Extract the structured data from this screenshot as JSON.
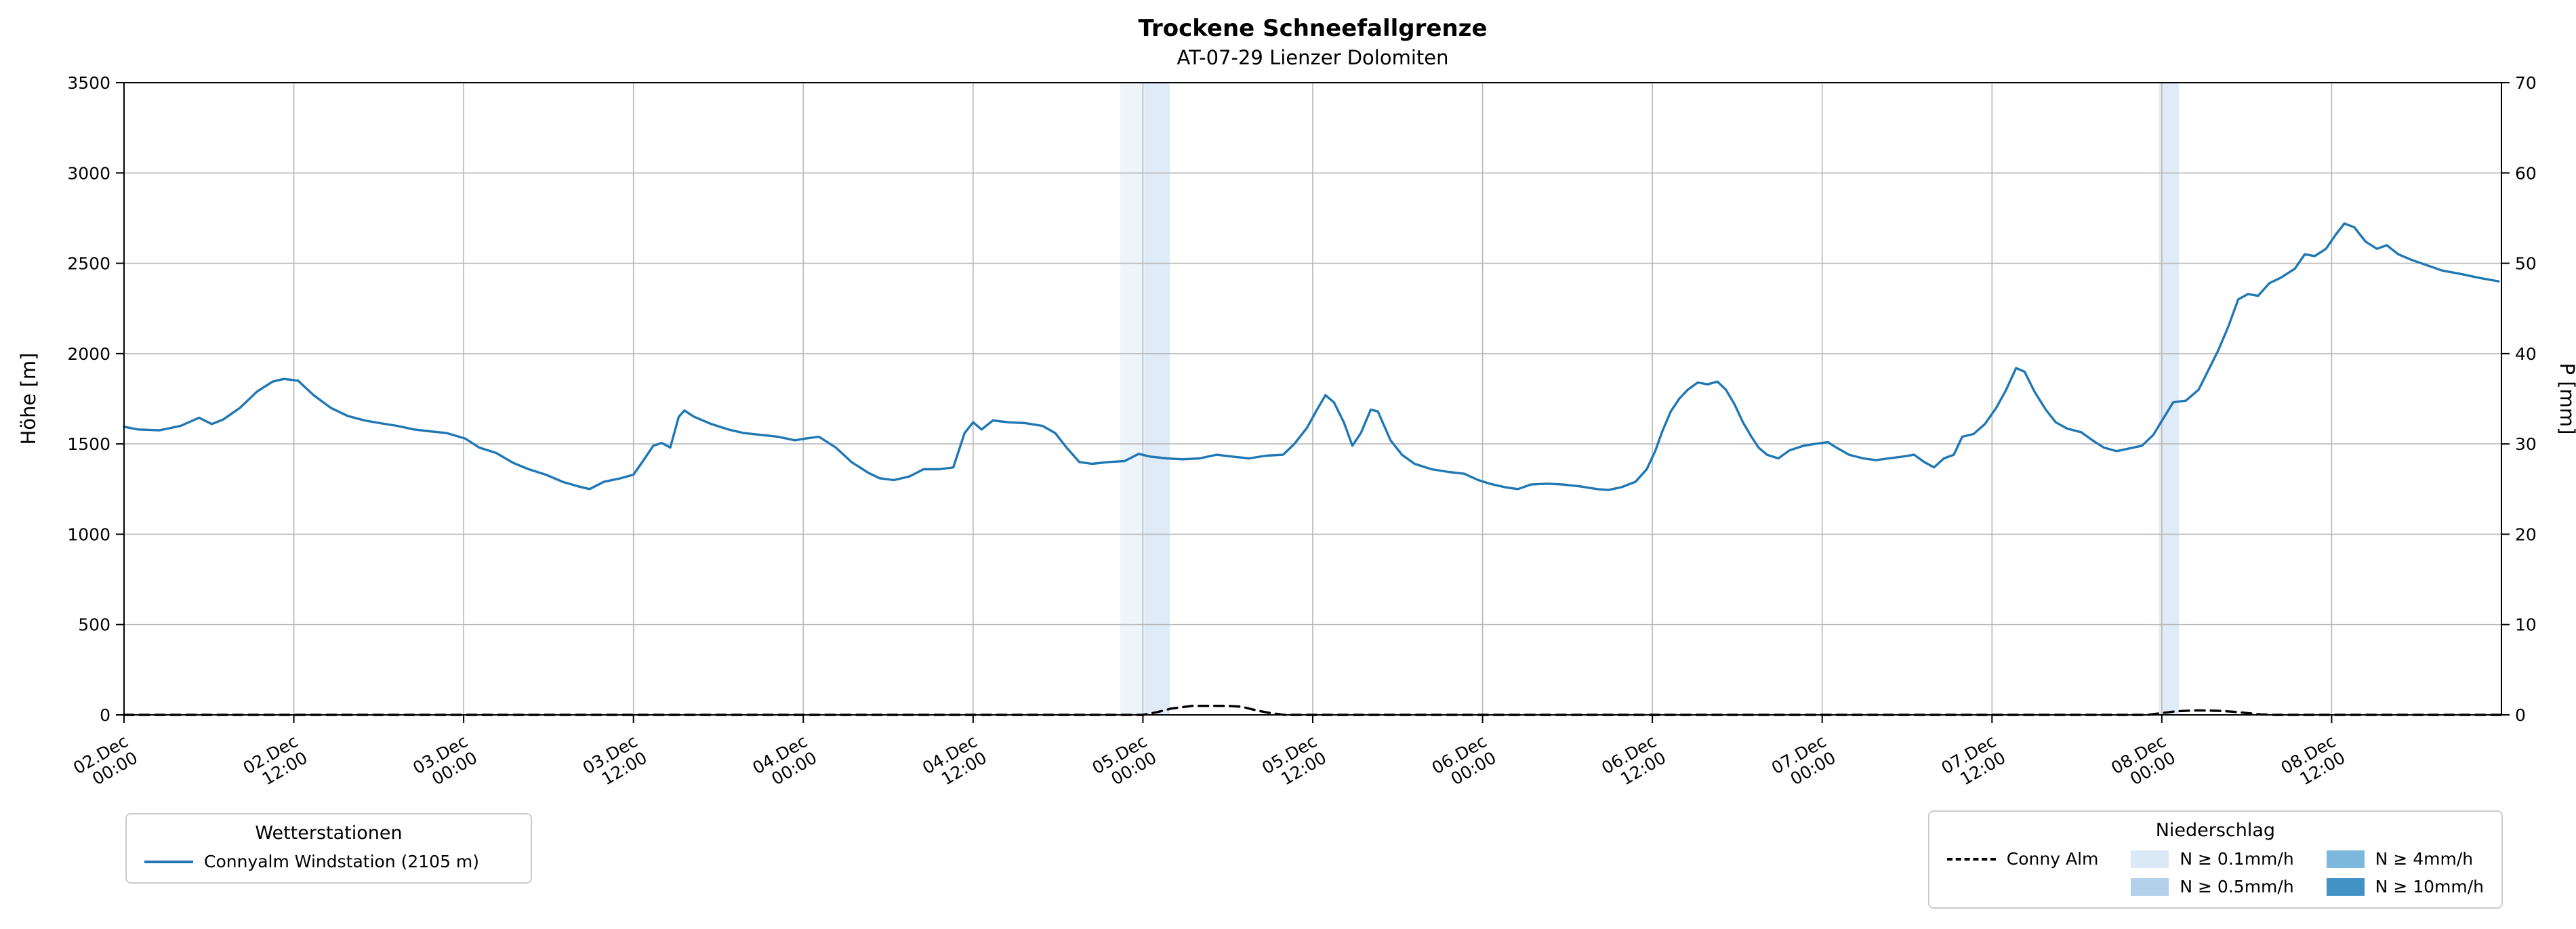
{
  "header": {
    "title": "Trockene Schneefallgrenze",
    "subtitle": "AT-07-29 Lienzer Dolomiten"
  },
  "legend_stations": {
    "title": "Wetterstationen",
    "items": [
      {
        "label": "Connyalm Windstation (2105 m)",
        "color": "#1f77b4",
        "style": "solid"
      }
    ]
  },
  "legend_precip": {
    "title": "Niederschlag",
    "line_item": {
      "label": "Conny Alm",
      "color": "#000000",
      "style": "dashed"
    },
    "levels": [
      {
        "label": "N ≥ 0.1mm/h",
        "color": "#dbe9f6"
      },
      {
        "label": "N ≥ 0.5mm/h",
        "color": "#b3d1ea"
      },
      {
        "label": "N ≥ 4mm/h",
        "color": "#7db8dd"
      },
      {
        "label": "N ≥ 10mm/h",
        "color": "#4292c6"
      }
    ]
  },
  "chart_data": {
    "type": "line",
    "title": "Trockene Schneefallgrenze",
    "subtitle": "AT-07-29 Lienzer Dolomiten",
    "ylabel_left": "Höhe [m]",
    "ylabel_right": "P [mm]",
    "x_unit": "hours since 02.Dec 00:00",
    "xlim": [
      0,
      168
    ],
    "ylim_left": [
      0,
      3500
    ],
    "ylim_right": [
      0,
      70
    ],
    "grid": true,
    "y_ticks_left": [
      0,
      500,
      1000,
      1500,
      2000,
      2500,
      3000,
      3500
    ],
    "y_ticks_right": [
      0,
      10,
      20,
      30,
      40,
      50,
      60,
      70
    ],
    "x_ticks": [
      {
        "t": 0,
        "line1": "02.Dec",
        "line2": "00:00"
      },
      {
        "t": 12,
        "line1": "02.Dec",
        "line2": "12:00"
      },
      {
        "t": 24,
        "line1": "03.Dec",
        "line2": "00:00"
      },
      {
        "t": 36,
        "line1": "03.Dec",
        "line2": "12:00"
      },
      {
        "t": 48,
        "line1": "04.Dec",
        "line2": "00:00"
      },
      {
        "t": 60,
        "line1": "04.Dec",
        "line2": "12:00"
      },
      {
        "t": 72,
        "line1": "05.Dec",
        "line2": "00:00"
      },
      {
        "t": 84,
        "line1": "05.Dec",
        "line2": "12:00"
      },
      {
        "t": 96,
        "line1": "06.Dec",
        "line2": "00:00"
      },
      {
        "t": 108,
        "line1": "06.Dec",
        "line2": "12:00"
      },
      {
        "t": 120,
        "line1": "07.Dec",
        "line2": "00:00"
      },
      {
        "t": 132,
        "line1": "07.Dec",
        "line2": "12:00"
      },
      {
        "t": 144,
        "line1": "08.Dec",
        "line2": "00:00"
      },
      {
        "t": 156,
        "line1": "08.Dec",
        "line2": "12:00"
      }
    ],
    "precip_bands": [
      {
        "t0": 70.4,
        "t1": 72.1,
        "level": "N ≥ 0.1mm/h",
        "color": "#dbe9f6",
        "opacity": 0.5
      },
      {
        "t0": 72.1,
        "t1": 73.9,
        "level": "N ≥ 0.1mm/h",
        "color": "#dbe9f6",
        "opacity": 0.9
      },
      {
        "t0": 143.8,
        "t1": 145.2,
        "level": "N ≥ 0.1mm/h",
        "color": "#dbe9f6",
        "opacity": 0.9
      }
    ],
    "series": [
      {
        "name": "Connyalm Windstation (2105 m)",
        "axis": "left",
        "color": "#1f77b4",
        "style": "solid",
        "points": [
          [
            0,
            1595
          ],
          [
            1,
            1580
          ],
          [
            2.5,
            1575
          ],
          [
            4,
            1600
          ],
          [
            5.3,
            1645
          ],
          [
            6.2,
            1610
          ],
          [
            7,
            1635
          ],
          [
            8.2,
            1700
          ],
          [
            9.4,
            1790
          ],
          [
            10.5,
            1845
          ],
          [
            11.3,
            1860
          ],
          [
            12.3,
            1850
          ],
          [
            13.4,
            1770
          ],
          [
            14.6,
            1700
          ],
          [
            15.8,
            1655
          ],
          [
            17,
            1630
          ],
          [
            18.1,
            1615
          ],
          [
            19.3,
            1600
          ],
          [
            20.5,
            1580
          ],
          [
            21.6,
            1570
          ],
          [
            22.8,
            1560
          ],
          [
            24.1,
            1530
          ],
          [
            25.1,
            1480
          ],
          [
            26.3,
            1450
          ],
          [
            27.5,
            1395
          ],
          [
            28.6,
            1360
          ],
          [
            29.8,
            1330
          ],
          [
            31,
            1290
          ],
          [
            32.1,
            1265
          ],
          [
            32.9,
            1250
          ],
          [
            33.9,
            1290
          ],
          [
            35.1,
            1310
          ],
          [
            36,
            1330
          ],
          [
            36.8,
            1420
          ],
          [
            37.4,
            1490
          ],
          [
            38,
            1505
          ],
          [
            38.6,
            1480
          ],
          [
            39.2,
            1650
          ],
          [
            39.6,
            1685
          ],
          [
            40.3,
            1650
          ],
          [
            41.5,
            1610
          ],
          [
            42.7,
            1580
          ],
          [
            43.8,
            1560
          ],
          [
            45,
            1550
          ],
          [
            46.2,
            1540
          ],
          [
            47.4,
            1520
          ],
          [
            48.2,
            1530
          ],
          [
            49.1,
            1540
          ],
          [
            50.3,
            1480
          ],
          [
            51.4,
            1400
          ],
          [
            52.6,
            1340
          ],
          [
            53.4,
            1310
          ],
          [
            54.4,
            1300
          ],
          [
            55.5,
            1320
          ],
          [
            56.5,
            1360
          ],
          [
            57.6,
            1360
          ],
          [
            58.6,
            1370
          ],
          [
            59.4,
            1560
          ],
          [
            60,
            1620
          ],
          [
            60.6,
            1580
          ],
          [
            61.4,
            1630
          ],
          [
            62.5,
            1620
          ],
          [
            63.7,
            1615
          ],
          [
            64.9,
            1600
          ],
          [
            65.8,
            1560
          ],
          [
            66.6,
            1480
          ],
          [
            67.5,
            1400
          ],
          [
            68.4,
            1390
          ],
          [
            69.6,
            1400
          ],
          [
            70.7,
            1405
          ],
          [
            71.7,
            1445
          ],
          [
            72.5,
            1430
          ],
          [
            73.7,
            1420
          ],
          [
            74.8,
            1415
          ],
          [
            76,
            1420
          ],
          [
            77.2,
            1440
          ],
          [
            78.3,
            1430
          ],
          [
            79.5,
            1420
          ],
          [
            80.7,
            1435
          ],
          [
            81.9,
            1440
          ],
          [
            82.7,
            1500
          ],
          [
            83.6,
            1590
          ],
          [
            84.3,
            1690
          ],
          [
            84.9,
            1770
          ],
          [
            85.5,
            1730
          ],
          [
            86.2,
            1620
          ],
          [
            86.8,
            1490
          ],
          [
            87.4,
            1560
          ],
          [
            88.1,
            1690
          ],
          [
            88.6,
            1680
          ],
          [
            89.5,
            1520
          ],
          [
            90.3,
            1440
          ],
          [
            91.2,
            1390
          ],
          [
            92.4,
            1360
          ],
          [
            93.6,
            1345
          ],
          [
            94.7,
            1335
          ],
          [
            95.7,
            1300
          ],
          [
            96.5,
            1280
          ],
          [
            97.6,
            1260
          ],
          [
            98.5,
            1250
          ],
          [
            99.4,
            1275
          ],
          [
            100.6,
            1280
          ],
          [
            101.7,
            1275
          ],
          [
            102.9,
            1265
          ],
          [
            104.1,
            1250
          ],
          [
            104.9,
            1245
          ],
          [
            105.8,
            1260
          ],
          [
            106.8,
            1290
          ],
          [
            107.6,
            1360
          ],
          [
            108.2,
            1460
          ],
          [
            108.7,
            1570
          ],
          [
            109.3,
            1680
          ],
          [
            109.9,
            1750
          ],
          [
            110.5,
            1800
          ],
          [
            111.2,
            1840
          ],
          [
            111.9,
            1830
          ],
          [
            112.6,
            1845
          ],
          [
            113.2,
            1800
          ],
          [
            113.8,
            1720
          ],
          [
            114.4,
            1620
          ],
          [
            115,
            1540
          ],
          [
            115.5,
            1480
          ],
          [
            116.1,
            1440
          ],
          [
            116.9,
            1420
          ],
          [
            117.7,
            1465
          ],
          [
            118.7,
            1490
          ],
          [
            119.5,
            1500
          ],
          [
            120.4,
            1510
          ],
          [
            121,
            1480
          ],
          [
            121.9,
            1440
          ],
          [
            122.9,
            1420
          ],
          [
            123.8,
            1410
          ],
          [
            124.7,
            1420
          ],
          [
            125.7,
            1430
          ],
          [
            126.5,
            1440
          ],
          [
            127.2,
            1400
          ],
          [
            127.9,
            1370
          ],
          [
            128.6,
            1420
          ],
          [
            129.3,
            1440
          ],
          [
            129.9,
            1540
          ],
          [
            130.7,
            1555
          ],
          [
            131.5,
            1610
          ],
          [
            132.3,
            1700
          ],
          [
            133,
            1800
          ],
          [
            133.7,
            1920
          ],
          [
            134.3,
            1900
          ],
          [
            135,
            1790
          ],
          [
            135.8,
            1690
          ],
          [
            136.5,
            1620
          ],
          [
            137.3,
            1585
          ],
          [
            138.3,
            1565
          ],
          [
            139.1,
            1520
          ],
          [
            139.9,
            1480
          ],
          [
            140.8,
            1460
          ],
          [
            141.7,
            1475
          ],
          [
            142.6,
            1490
          ],
          [
            143.4,
            1550
          ],
          [
            144.1,
            1640
          ],
          [
            144.8,
            1730
          ],
          [
            145.7,
            1740
          ],
          [
            146.6,
            1800
          ],
          [
            147.3,
            1910
          ],
          [
            148,
            2020
          ],
          [
            148.7,
            2150
          ],
          [
            149.4,
            2300
          ],
          [
            150.1,
            2330
          ],
          [
            150.8,
            2320
          ],
          [
            151.6,
            2390
          ],
          [
            152.4,
            2420
          ],
          [
            153.4,
            2470
          ],
          [
            154.1,
            2550
          ],
          [
            154.8,
            2540
          ],
          [
            155.6,
            2580
          ],
          [
            156.3,
            2660
          ],
          [
            156.9,
            2720
          ],
          [
            157.6,
            2700
          ],
          [
            158.4,
            2620
          ],
          [
            159.2,
            2580
          ],
          [
            159.9,
            2600
          ],
          [
            160.7,
            2550
          ],
          [
            161.6,
            2520
          ],
          [
            162.7,
            2490
          ],
          [
            163.8,
            2460
          ],
          [
            165.2,
            2440
          ],
          [
            166.4,
            2420
          ],
          [
            167.8,
            2400
          ]
        ]
      },
      {
        "name": "Conny Alm",
        "axis": "right",
        "color": "#000000",
        "style": "dashed",
        "points": [
          [
            0,
            0
          ],
          [
            72,
            0
          ],
          [
            73,
            0.3
          ],
          [
            74,
            0.7
          ],
          [
            75.5,
            1.0
          ],
          [
            78,
            1.0
          ],
          [
            79,
            0.9
          ],
          [
            80,
            0.5
          ],
          [
            81,
            0.2
          ],
          [
            82,
            0
          ],
          [
            143,
            0
          ],
          [
            144,
            0.2
          ],
          [
            145,
            0.4
          ],
          [
            146.5,
            0.5
          ],
          [
            148,
            0.45
          ],
          [
            149,
            0.35
          ],
          [
            150,
            0.2
          ],
          [
            151,
            0.05
          ],
          [
            152,
            0
          ],
          [
            168,
            0
          ]
        ]
      }
    ]
  }
}
